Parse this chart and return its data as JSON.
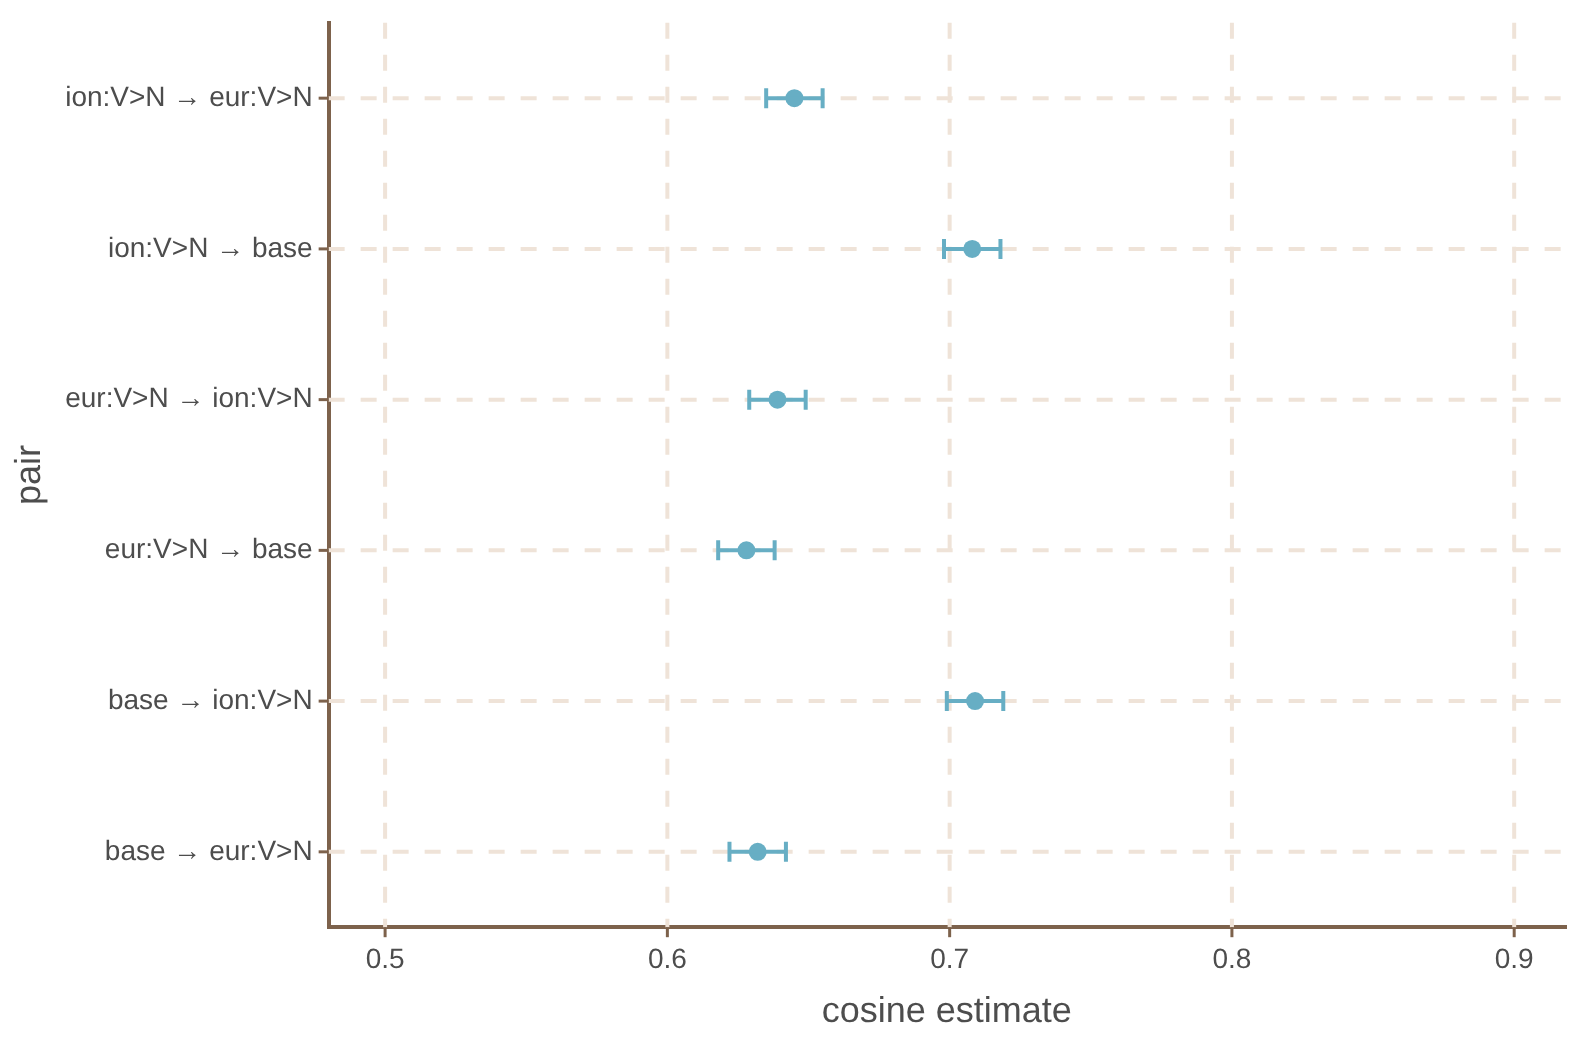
{
  "chart_data": {
    "type": "scatter",
    "orientation": "horizontal",
    "xlabel": "cosine estimate",
    "ylabel": "pair",
    "categories": [
      "ion:V>N → eur:V>N",
      "ion:V>N → base",
      "eur:V>N → ion:V>N",
      "eur:V>N → base",
      "base → ion:V>N",
      "base → eur:V>N"
    ],
    "values": [
      0.645,
      0.708,
      0.639,
      0.628,
      0.709,
      0.632
    ],
    "errors": [
      0.01,
      0.01,
      0.01,
      0.01,
      0.01,
      0.01
    ],
    "color": "#67aec4",
    "marker": "circle",
    "grid": true,
    "xlim": [
      0.48,
      0.918
    ],
    "xticks": [
      0.5,
      0.6,
      0.7,
      0.8,
      0.9
    ]
  }
}
